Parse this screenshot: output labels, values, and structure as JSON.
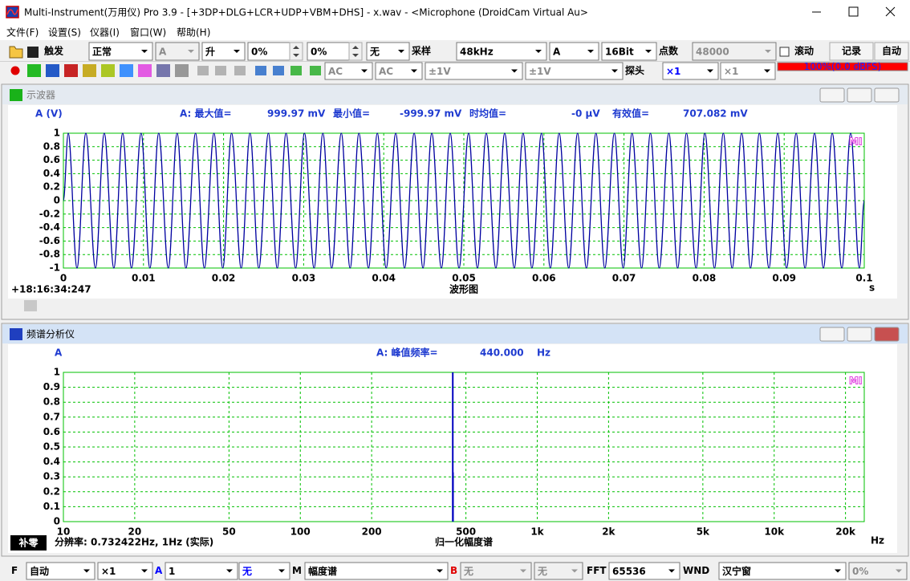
{
  "window": {
    "title": "Multi-Instrument(万用仪) Pro 3.9  -  [+3DP+DLG+LCR+UDP+VBM+DHS]  -  x.wav  -  <Microphone (DroidCam Virtual Au>",
    "menu": [
      "文件(F)",
      "设置(S)",
      "仪器(I)",
      "窗口(W)",
      "帮助(H)"
    ]
  },
  "toolbar": {
    "row1": [
      "触发",
      "正常",
      "A",
      "升",
      "0%",
      "0%",
      "无",
      "采样",
      "48kHz",
      "A",
      "16Bit",
      "点数",
      "48000",
      "滚动",
      "记录",
      "自动"
    ],
    "row2": [
      "AC",
      "AC",
      "±1V",
      "±1V",
      "探头",
      "×1",
      "×1",
      "100%(0.0 dBFS)"
    ]
  },
  "statusbar": [
    "F",
    "自动",
    "×1",
    "A",
    "1",
    "无",
    "M",
    "幅度谱",
    "B",
    "无",
    "无",
    "FFT",
    "65536",
    "WND",
    "汉宁窗",
    "0%"
  ],
  "chart_data": [
    {
      "type": "line",
      "title": "示波器",
      "y_label": "A (V)",
      "x_label": "波形图",
      "x_unit": "s",
      "timestamp": "+18:16:34:247",
      "badge": "MI",
      "stats": [
        {
          "label": "A: 最大值=",
          "value": "999.97 mV"
        },
        {
          "label": "最小值=",
          "value": "-999.97 mV"
        },
        {
          "label": "时均值=",
          "value": "-0  μV"
        },
        {
          "label": "有效值=",
          "value": "707.082 mV"
        }
      ],
      "xlim": [
        0,
        0.1
      ],
      "xticks": [
        0,
        0.01,
        0.02,
        0.03,
        0.04,
        0.05,
        0.06,
        0.07,
        0.08,
        0.09,
        0.1
      ],
      "ylim": [
        -1,
        1
      ],
      "yticks": [
        -1,
        -0.8,
        -0.6,
        -0.4,
        -0.2,
        0,
        0.2,
        0.4,
        0.6,
        0.8,
        1
      ],
      "grid": true,
      "grid_color": "#00c000",
      "color": "#0000a0",
      "x": [
        0,
        0.0006,
        0.0017,
        0.0028,
        0.004,
        0.0051,
        0.0063,
        0.0074,
        0.0085,
        0.0097,
        0.0108,
        0.0119,
        0.0131,
        0.0142,
        0.0153,
        0.0165,
        0.0176,
        0.0188,
        0.0199,
        0.021,
        0.0222,
        0.0233,
        0.0244,
        0.0256,
        0.0267,
        0.0278,
        0.029,
        0.0301,
        0.0313,
        0.0324,
        0.0335,
        0.0347,
        0.0358,
        0.0369,
        0.0381,
        0.0392,
        0.0403,
        0.0415,
        0.0426,
        0.0438,
        0.0449,
        0.046,
        0.0472,
        0.0483,
        0.0494,
        0.0506,
        0.0517,
        0.0528,
        0.054,
        0.0551,
        0.0563,
        0.0574,
        0.0585,
        0.0597,
        0.0608,
        0.0619,
        0.0631,
        0.0642,
        0.0653,
        0.0665,
        0.0676,
        0.0688,
        0.0699,
        0.071,
        0.0722,
        0.0733,
        0.0744,
        0.0756,
        0.0767,
        0.0778,
        0.079,
        0.0801,
        0.0813,
        0.0824,
        0.0835,
        0.0847,
        0.0858,
        0.0869,
        0.0881,
        0.0892,
        0.0903,
        0.0915,
        0.0926,
        0.0938,
        0.0949,
        0.096,
        0.0972,
        0.0983,
        0.0994,
        0.1
      ],
      "values": [
        0,
        1,
        -1,
        1,
        -1,
        1,
        -1,
        1,
        -1,
        1,
        -1,
        1,
        -1,
        1,
        -1,
        1,
        -1,
        1,
        -1,
        1,
        -1,
        1,
        -1,
        1,
        -1,
        1,
        -1,
        1,
        -1,
        1,
        -1,
        1,
        -1,
        1,
        -1,
        1,
        -1,
        1,
        -1,
        1,
        -1,
        1,
        -1,
        1,
        -1,
        1,
        -1,
        1,
        -1,
        1,
        -1,
        1,
        -1,
        1,
        -1,
        1,
        -1,
        1,
        -1,
        1,
        -1,
        1,
        -1,
        1,
        -1,
        1,
        -1,
        1,
        -1,
        1,
        -1,
        1,
        -1,
        1,
        -1,
        1,
        -1,
        1,
        -1,
        1,
        -1,
        1,
        -1,
        1,
        -1,
        1,
        -1,
        1,
        -1,
        0
      ]
    },
    {
      "type": "bar",
      "title": "频谱分析仪",
      "y_label": "A",
      "x_label": "归一化幅度谱",
      "x_unit": "Hz",
      "badge": "MI",
      "stats": [
        {
          "label": "A: 峰值频率=",
          "value": "440.000",
          "unit": "Hz"
        }
      ],
      "zero_pad": "补零",
      "resolution": "分辨率: 0.732422Hz, 1Hz (实际)",
      "log_x": true,
      "xlim": [
        10,
        24000
      ],
      "xticks": [
        10,
        20,
        50,
        100,
        200,
        500,
        {
          "value": 1000,
          "label": "1k"
        },
        {
          "value": 2000,
          "label": "2k"
        },
        {
          "value": 5000,
          "label": "5k"
        },
        {
          "value": 10000,
          "label": "10k"
        },
        {
          "value": 20000,
          "label": "20k"
        }
      ],
      "ylim": [
        0,
        1
      ],
      "yticks": [
        0,
        0.1,
        0.2,
        0.3,
        0.4,
        0.5,
        0.6,
        0.7,
        0.8,
        0.9,
        1
      ],
      "grid": true,
      "grid_color": "#00c000",
      "color": "#0000c0",
      "x": [
        440,
        441
      ],
      "values": [
        1,
        0.33
      ]
    }
  ]
}
